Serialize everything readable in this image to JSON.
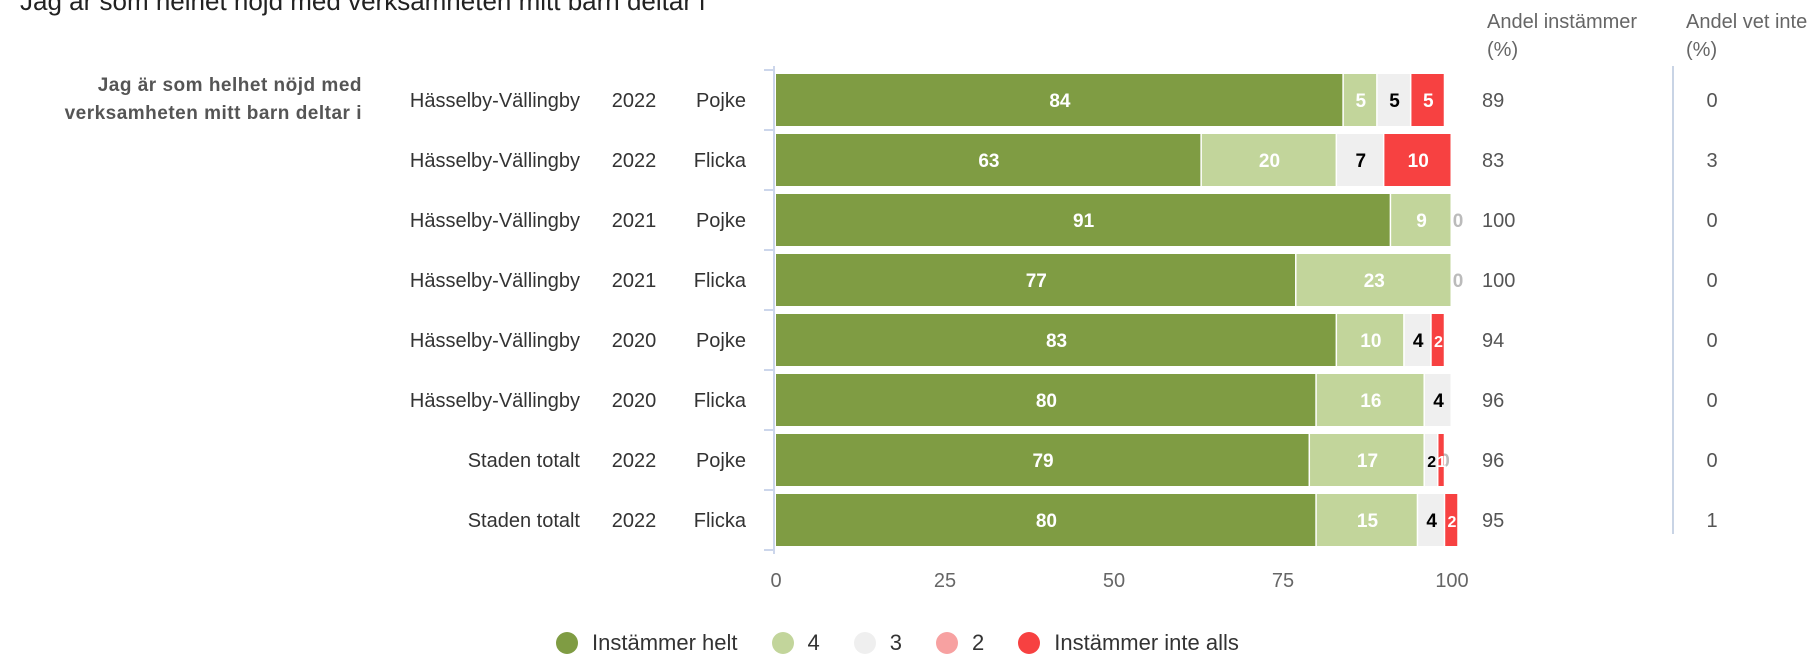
{
  "title": "Jag är som helhet nöjd med verksamheten mitt barn deltar i",
  "question_label": "Jag är som helhet nöjd med verksamheten mitt barn deltar i",
  "column_headers": {
    "agree": "Andel instämmer (%)",
    "dont_know": "Andel vet inte (%)"
  },
  "colors": {
    "Instämmer helt": "#7f9c43",
    "4": "#c2d59b",
    "3": "#efefef",
    "2": "#f7a1a1",
    "Instämmer inte alls": "#f74141"
  },
  "chart_data": {
    "type": "bar",
    "orientation": "horizontal",
    "stacked": true,
    "xlim": [
      0,
      100
    ],
    "xticks": [
      "0",
      "25",
      "50",
      "75",
      "100"
    ],
    "row_labels": [
      {
        "area": "Hässelby-Vällingby",
        "year": "2022",
        "gender": "Pojke"
      },
      {
        "area": "Hässelby-Vällingby",
        "year": "2022",
        "gender": "Flicka"
      },
      {
        "area": "Hässelby-Vällingby",
        "year": "2021",
        "gender": "Pojke"
      },
      {
        "area": "Hässelby-Vällingby",
        "year": "2021",
        "gender": "Flicka"
      },
      {
        "area": "Hässelby-Vällingby",
        "year": "2020",
        "gender": "Pojke"
      },
      {
        "area": "Hässelby-Vällingby",
        "year": "2020",
        "gender": "Flicka"
      },
      {
        "area": "Staden totalt",
        "year": "2022",
        "gender": "Pojke"
      },
      {
        "area": "Staden totalt",
        "year": "2022",
        "gender": "Flicka"
      }
    ],
    "series": [
      {
        "name": "Instämmer helt",
        "values": [
          84,
          63,
          91,
          77,
          83,
          80,
          79,
          80
        ]
      },
      {
        "name": "4",
        "values": [
          5,
          20,
          9,
          23,
          10,
          16,
          17,
          15
        ]
      },
      {
        "name": "3",
        "values": [
          5,
          7,
          0,
          0,
          4,
          4,
          2,
          4
        ]
      },
      {
        "name": "2",
        "values": [
          0,
          0,
          0,
          0,
          0,
          0,
          0,
          0
        ]
      },
      {
        "name": "Instämmer inte alls",
        "values": [
          5,
          10,
          0,
          0,
          2,
          0,
          1,
          2
        ]
      }
    ],
    "agree_pct": [
      "89",
      "83",
      "100",
      "100",
      "94",
      "96",
      "96",
      "95"
    ],
    "dont_know_pct": [
      "0",
      "3",
      "0",
      "0",
      "0",
      "0",
      "0",
      "1"
    ],
    "legend_position": "bottom"
  }
}
